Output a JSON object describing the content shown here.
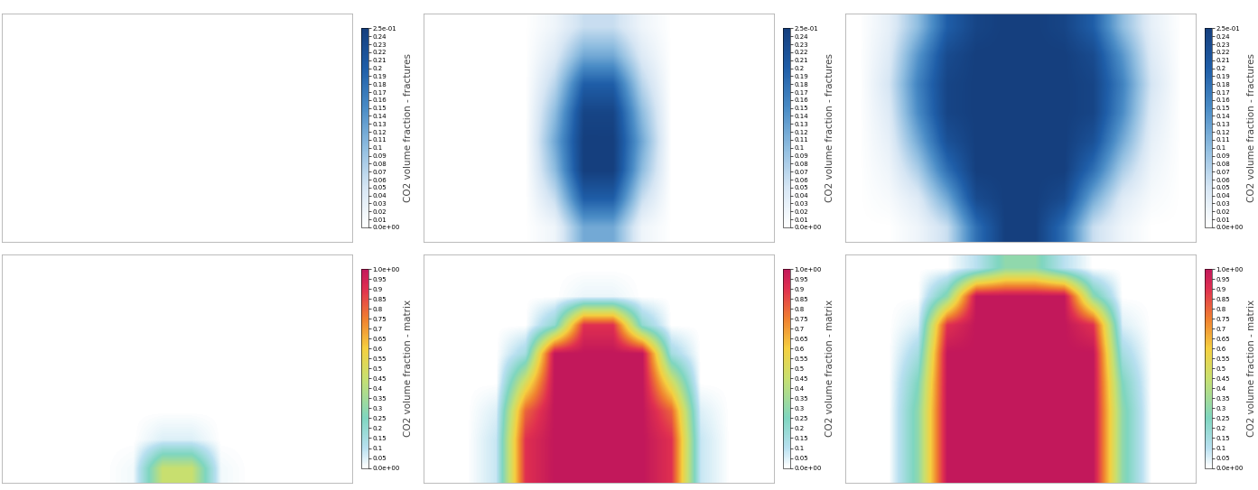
{
  "chart_data": [
    {
      "type": "heatmap",
      "colorbar_label": "CO2 volume fraction - fractures",
      "tick_labels": false,
      "colorbar_range": [
        0,
        0.25
      ],
      "colorbar_ticks": [
        {
          "value": 0,
          "label": "0.0e+00"
        },
        0.01,
        0.02,
        0.03,
        0.04,
        0.05,
        0.06,
        0.07,
        0.08,
        0.09,
        0.1,
        0.11,
        0.12,
        0.13,
        0.14,
        0.15,
        0.16,
        0.17,
        0.18,
        0.19,
        0.2,
        0.21,
        0.22,
        0.23,
        0.24,
        {
          "value": 0.25,
          "label": "2.5e-01"
        }
      ],
      "cells": [
        [
          0,
          0,
          0,
          0,
          0,
          0,
          0,
          0,
          0,
          0,
          0,
          0
        ],
        [
          0,
          0,
          0,
          0,
          0,
          0,
          0,
          0,
          0,
          0,
          0,
          0
        ],
        [
          0,
          0,
          0,
          0,
          0,
          0,
          0,
          0,
          0,
          0,
          0,
          0
        ],
        [
          0,
          0,
          0,
          0,
          0,
          0,
          0,
          0,
          0,
          0,
          0,
          0
        ],
        [
          0,
          0,
          0,
          0,
          0,
          0,
          0,
          0,
          0,
          0,
          0,
          0
        ],
        [
          0,
          0,
          0,
          0,
          0,
          0,
          0,
          0,
          0,
          0,
          0,
          0
        ],
        [
          0,
          0,
          0,
          0,
          0,
          0,
          0,
          0,
          0,
          0,
          0,
          0
        ],
        [
          0,
          0,
          0,
          0,
          0,
          0,
          0,
          0,
          0,
          0,
          0,
          0
        ]
      ]
    },
    {
      "type": "heatmap",
      "colorbar_label": "CO2 volume fraction - fractures",
      "tick_labels": false,
      "colorbar_range": [
        0,
        0.25
      ],
      "colorbar_ticks": [
        {
          "value": 0,
          "label": "0.0e+00"
        },
        0.01,
        0.02,
        0.03,
        0.04,
        0.05,
        0.06,
        0.07,
        0.08,
        0.09,
        0.1,
        0.11,
        0.12,
        0.13,
        0.14,
        0.15,
        0.16,
        0.17,
        0.18,
        0.19,
        0.2,
        0.21,
        0.22,
        0.23,
        0.24,
        {
          "value": 0.25,
          "label": "2.5e-01"
        }
      ],
      "cells": [
        [
          0,
          0,
          0,
          0,
          0.02,
          0.06,
          0.06,
          0.02,
          0,
          0,
          0,
          0
        ],
        [
          0,
          0,
          0,
          0,
          0.04,
          0.12,
          0.12,
          0.04,
          0,
          0,
          0,
          0
        ],
        [
          0,
          0,
          0,
          0,
          0.07,
          0.2,
          0.2,
          0.07,
          0,
          0,
          0,
          0
        ],
        [
          0,
          0,
          0,
          0,
          0.1,
          0.24,
          0.24,
          0.1,
          0,
          0,
          0,
          0
        ],
        [
          0,
          0,
          0,
          0,
          0.12,
          0.25,
          0.25,
          0.12,
          0,
          0,
          0,
          0
        ],
        [
          0,
          0,
          0,
          0,
          0.1,
          0.25,
          0.25,
          0.1,
          0,
          0,
          0,
          0
        ],
        [
          0,
          0,
          0,
          0,
          0.06,
          0.2,
          0.2,
          0.06,
          0,
          0,
          0,
          0
        ],
        [
          0,
          0,
          0,
          0,
          0.02,
          0.12,
          0.12,
          0.02,
          0,
          0,
          0,
          0
        ]
      ]
    },
    {
      "type": "heatmap",
      "colorbar_label": "CO2 volume fraction - fractures",
      "tick_labels": false,
      "colorbar_range": [
        0,
        0.25
      ],
      "colorbar_ticks": [
        {
          "value": 0,
          "label": "0.0e+00"
        },
        0.01,
        0.02,
        0.03,
        0.04,
        0.05,
        0.06,
        0.07,
        0.08,
        0.09,
        0.1,
        0.11,
        0.12,
        0.13,
        0.14,
        0.15,
        0.16,
        0.17,
        0.18,
        0.19,
        0.2,
        0.21,
        0.22,
        0.23,
        0.24,
        {
          "value": 0.25,
          "label": "2.5e-01"
        }
      ],
      "cells": [
        [
          0,
          0.03,
          0.1,
          0.2,
          0.24,
          0.25,
          0.25,
          0.24,
          0.2,
          0.1,
          0.03,
          0
        ],
        [
          0,
          0.04,
          0.14,
          0.23,
          0.25,
          0.25,
          0.25,
          0.25,
          0.23,
          0.14,
          0.04,
          0
        ],
        [
          0,
          0.05,
          0.16,
          0.24,
          0.25,
          0.25,
          0.25,
          0.25,
          0.24,
          0.16,
          0.05,
          0
        ],
        [
          0,
          0.04,
          0.15,
          0.24,
          0.25,
          0.25,
          0.25,
          0.25,
          0.24,
          0.15,
          0.04,
          0
        ],
        [
          0,
          0.03,
          0.12,
          0.22,
          0.25,
          0.25,
          0.25,
          0.25,
          0.22,
          0.12,
          0.03,
          0
        ],
        [
          0,
          0.02,
          0.08,
          0.18,
          0.25,
          0.25,
          0.25,
          0.25,
          0.18,
          0.08,
          0.02,
          0
        ],
        [
          0,
          0.01,
          0.04,
          0.12,
          0.23,
          0.25,
          0.25,
          0.23,
          0.12,
          0.04,
          0.01,
          0
        ],
        [
          0,
          0,
          0.02,
          0.06,
          0.18,
          0.25,
          0.25,
          0.18,
          0.06,
          0.02,
          0,
          0
        ]
      ]
    },
    {
      "type": "heatmap",
      "colorbar_label": "CO2 volume fraction - matrix",
      "tick_labels": false,
      "colorbar_range": [
        0,
        1
      ],
      "colorbar_ticks": [
        {
          "value": 0,
          "label": "0.0e+00"
        },
        0.05,
        0.1,
        0.15,
        0.2,
        0.25,
        0.3,
        0.35,
        0.4,
        0.45,
        0.5,
        0.55,
        0.6,
        0.65,
        0.7,
        0.75,
        0.8,
        0.85,
        0.9,
        0.95,
        {
          "value": 1,
          "label": "1.0e+00"
        }
      ],
      "cells": [
        [
          0,
          0,
          0,
          0,
          0,
          0,
          0,
          0,
          0,
          0,
          0,
          0
        ],
        [
          0,
          0,
          0,
          0,
          0,
          0,
          0,
          0,
          0,
          0,
          0,
          0
        ],
        [
          0,
          0,
          0,
          0,
          0,
          0,
          0,
          0,
          0,
          0,
          0,
          0
        ],
        [
          0,
          0,
          0,
          0,
          0,
          0,
          0,
          0,
          0,
          0,
          0,
          0
        ],
        [
          0,
          0,
          0,
          0,
          0,
          0,
          0,
          0,
          0,
          0,
          0,
          0
        ],
        [
          0,
          0,
          0,
          0,
          0,
          0,
          0,
          0,
          0,
          0,
          0,
          0
        ],
        [
          0,
          0,
          0,
          0,
          0,
          0.05,
          0.05,
          0,
          0,
          0,
          0,
          0
        ],
        [
          0,
          0,
          0,
          0,
          0.02,
          0.45,
          0.45,
          0.02,
          0,
          0,
          0,
          0
        ]
      ]
    },
    {
      "type": "heatmap",
      "colorbar_label": "CO2 volume fraction - matrix",
      "tick_labels": false,
      "colorbar_range": [
        0,
        1
      ],
      "colorbar_ticks": [
        {
          "value": 0,
          "label": "0.0e+00"
        },
        0.05,
        0.1,
        0.15,
        0.2,
        0.25,
        0.3,
        0.35,
        0.4,
        0.45,
        0.5,
        0.55,
        0.6,
        0.65,
        0.7,
        0.75,
        0.8,
        0.85,
        0.9,
        0.95,
        {
          "value": 1,
          "label": "1.0e+00"
        }
      ],
      "cells": [
        [
          0,
          0,
          0,
          0,
          0,
          0,
          0,
          0,
          0,
          0,
          0,
          0
        ],
        [
          0,
          0,
          0,
          0,
          0,
          0.03,
          0.03,
          0,
          0,
          0,
          0,
          0
        ],
        [
          0,
          0,
          0,
          0,
          0.2,
          0.9,
          0.9,
          0.2,
          0,
          0,
          0,
          0
        ],
        [
          0,
          0,
          0,
          0.15,
          1,
          1,
          1,
          1,
          0.15,
          0,
          0,
          0
        ],
        [
          0,
          0,
          0,
          0.5,
          1,
          1,
          1,
          1,
          0.5,
          0,
          0,
          0
        ],
        [
          0,
          0,
          0.05,
          0.8,
          1,
          1,
          1,
          1,
          0.8,
          0.05,
          0,
          0
        ],
        [
          0,
          0,
          0.08,
          0.9,
          1,
          1,
          1,
          1,
          0.9,
          0.08,
          0,
          0
        ],
        [
          0,
          0,
          0.08,
          0.9,
          1,
          1,
          1,
          1,
          0.9,
          0.08,
          0,
          0
        ]
      ]
    },
    {
      "type": "heatmap",
      "colorbar_label": "CO2 volume fraction - matrix",
      "tick_labels": false,
      "colorbar_range": [
        0,
        1
      ],
      "colorbar_ticks": [
        {
          "value": 0,
          "label": "0.0e+00"
        },
        0.05,
        0.1,
        0.15,
        0.2,
        0.25,
        0.3,
        0.35,
        0.4,
        0.45,
        0.5,
        0.55,
        0.6,
        0.65,
        0.7,
        0.75,
        0.8,
        0.85,
        0.9,
        0.95,
        {
          "value": 1,
          "label": "1.0e+00"
        }
      ],
      "cells": [
        [
          0,
          0,
          0,
          0,
          0.1,
          0.3,
          0.3,
          0.1,
          0,
          0,
          0,
          0
        ],
        [
          0,
          0,
          0,
          0.3,
          1,
          1,
          1,
          1,
          0.3,
          0,
          0,
          0
        ],
        [
          0,
          0,
          0.05,
          0.9,
          1,
          1,
          1,
          1,
          0.9,
          0.05,
          0,
          0
        ],
        [
          0,
          0,
          0.15,
          1,
          1,
          1,
          1,
          1,
          1,
          0.15,
          0,
          0
        ],
        [
          0,
          0,
          0.25,
          1,
          1,
          1,
          1,
          1,
          1,
          0.25,
          0,
          0
        ],
        [
          0,
          0,
          0.3,
          1,
          1,
          1,
          1,
          1,
          1,
          0.3,
          0,
          0
        ],
        [
          0,
          0,
          0.3,
          1,
          1,
          1,
          1,
          1,
          1,
          0.3,
          0,
          0
        ],
        [
          0,
          0,
          0.3,
          1,
          1,
          1,
          1,
          1,
          1,
          0.3,
          0,
          0
        ]
      ]
    }
  ]
}
